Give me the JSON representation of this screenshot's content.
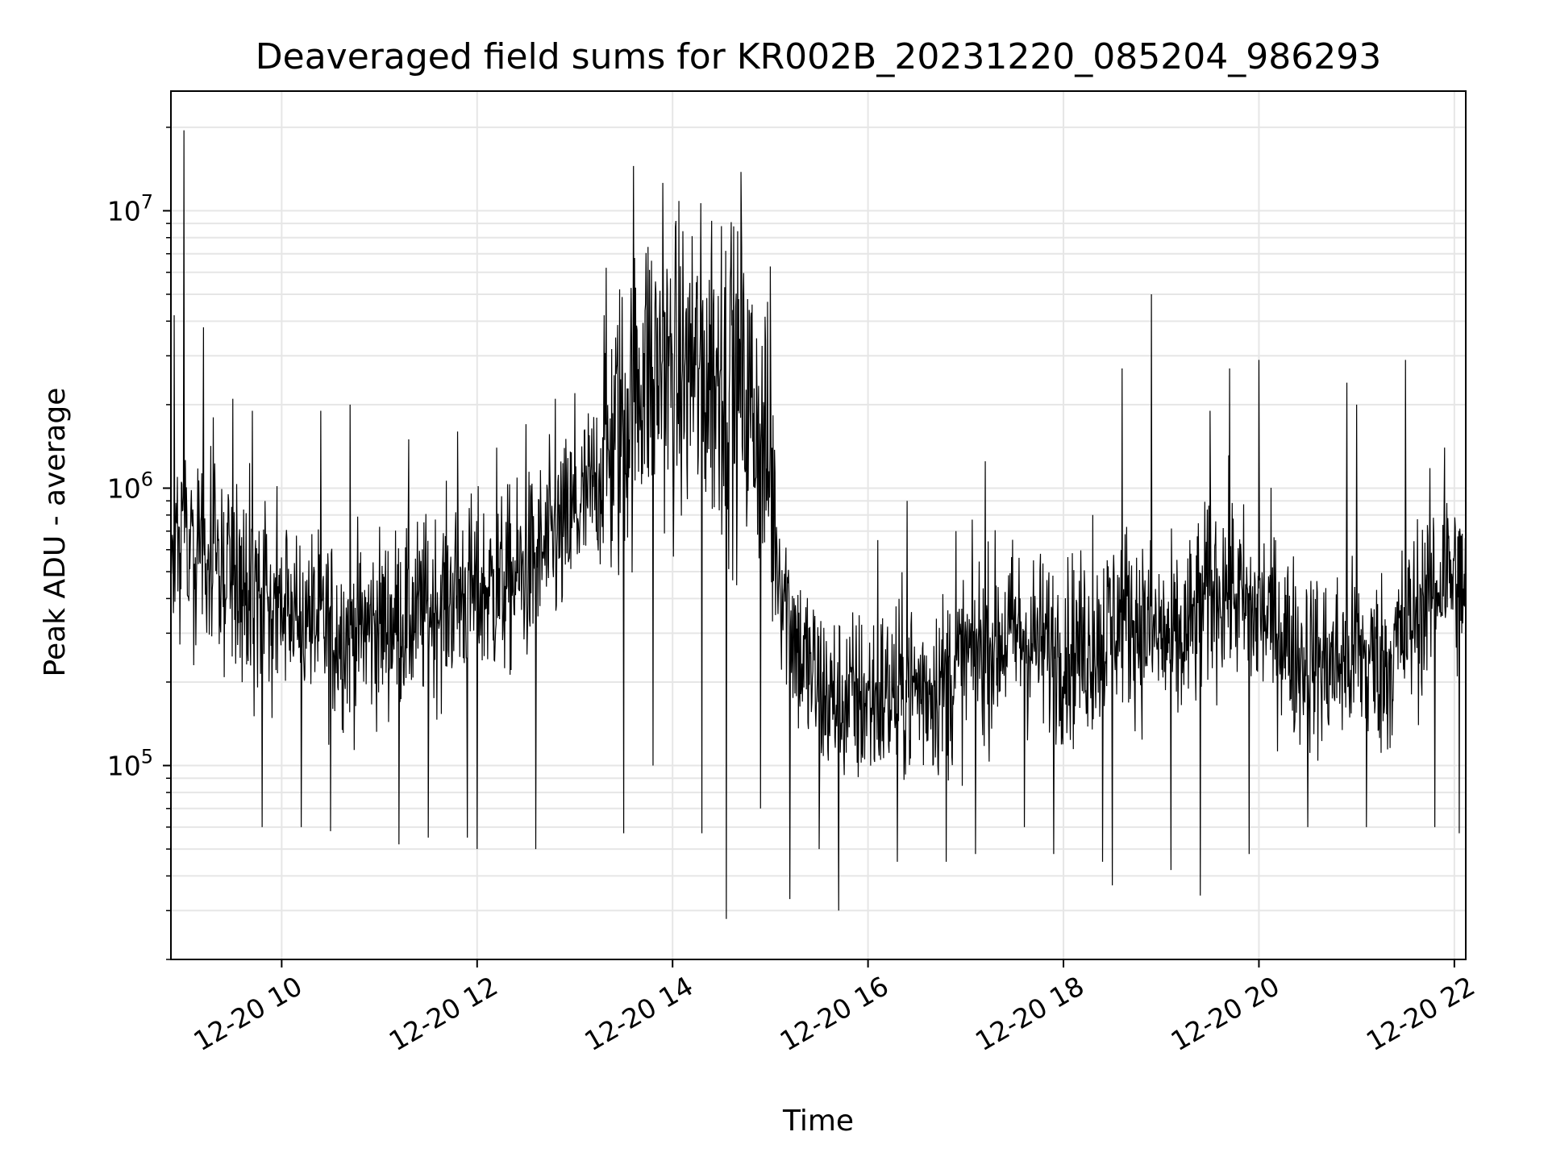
{
  "chart_data": {
    "type": "line",
    "title": "Deaveraged field sums for KR002B_20231220_085204_986293",
    "xlabel": "Time",
    "ylabel": "Peak ADU - average",
    "yscale": "log",
    "grid": true,
    "line_color": "#000000",
    "grid_color": "#e6e6e6",
    "xlim": [
      "12-20 08:52",
      "12-20 22:07"
    ],
    "ylim": [
      20000,
      27000000
    ],
    "x_ticks": [
      {
        "hour": 10,
        "label": "12-20 10"
      },
      {
        "hour": 12,
        "label": "12-20 12"
      },
      {
        "hour": 14,
        "label": "12-20 14"
      },
      {
        "hour": 16,
        "label": "12-20 16"
      },
      {
        "hour": 18,
        "label": "12-20 18"
      },
      {
        "hour": 20,
        "label": "12-20 20"
      },
      {
        "hour": 22,
        "label": "12-20 22"
      }
    ],
    "y_ticks": [
      {
        "value": 100000,
        "base": "10",
        "exp": "5"
      },
      {
        "value": 1000000,
        "base": "10",
        "exp": "6"
      },
      {
        "value": 10000000,
        "base": "10",
        "exp": "7"
      }
    ],
    "series": [
      {
        "x_unit": "hour of 2023-12-20",
        "baseline": [
          [
            8.88,
            700000
          ],
          [
            9.2,
            550000
          ],
          [
            9.5,
            450000
          ],
          [
            9.8,
            400000
          ],
          [
            10.0,
            350000
          ],
          [
            10.3,
            330000
          ],
          [
            10.6,
            300000
          ],
          [
            11.0,
            320000
          ],
          [
            11.4,
            350000
          ],
          [
            11.8,
            420000
          ],
          [
            12.2,
            430000
          ],
          [
            12.5,
            500000
          ],
          [
            12.9,
            700000
          ],
          [
            13.2,
            1000000
          ],
          [
            13.5,
            1800000
          ],
          [
            13.7,
            2800000
          ],
          [
            14.0,
            2500000
          ],
          [
            14.3,
            2600000
          ],
          [
            14.6,
            2300000
          ],
          [
            14.9,
            1800000
          ],
          [
            15.1,
            500000
          ],
          [
            15.3,
            250000
          ],
          [
            15.6,
            170000
          ],
          [
            15.9,
            170000
          ],
          [
            16.2,
            180000
          ],
          [
            16.5,
            190000
          ],
          [
            16.8,
            200000
          ],
          [
            17.1,
            260000
          ],
          [
            17.5,
            300000
          ],
          [
            17.9,
            260000
          ],
          [
            18.3,
            270000
          ],
          [
            18.6,
            360000
          ],
          [
            18.9,
            300000
          ],
          [
            19.2,
            270000
          ],
          [
            19.5,
            420000
          ],
          [
            19.7,
            450000
          ],
          [
            19.9,
            350000
          ],
          [
            20.1,
            350000
          ],
          [
            20.4,
            250000
          ],
          [
            20.7,
            230000
          ],
          [
            21.0,
            250000
          ],
          [
            21.3,
            230000
          ],
          [
            21.6,
            350000
          ],
          [
            21.9,
            500000
          ],
          [
            22.12,
            450000
          ]
        ],
        "spikes": [
          [
            8.9,
            4200000
          ],
          [
            9.0,
            19500000
          ],
          [
            9.1,
            2900000
          ],
          [
            9.2,
            3800000
          ],
          [
            9.3,
            1800000
          ],
          [
            9.5,
            2100000
          ],
          [
            9.7,
            1900000
          ],
          [
            10.2,
            1500000
          ],
          [
            10.4,
            1900000
          ],
          [
            10.7,
            2000000
          ],
          [
            11.3,
            1500000
          ],
          [
            11.8,
            1600000
          ],
          [
            12.2,
            1400000
          ],
          [
            12.5,
            1700000
          ],
          [
            12.8,
            2100000
          ],
          [
            13.0,
            2200000
          ],
          [
            13.3,
            4200000
          ],
          [
            13.6,
            14500000
          ],
          [
            13.8,
            12800000
          ],
          [
            13.9,
            12600000
          ],
          [
            14.2,
            8100000
          ],
          [
            14.4,
            9200000
          ],
          [
            14.5,
            8800000
          ],
          [
            14.6,
            9100000
          ],
          [
            14.7,
            13800000
          ],
          [
            14.9,
            8300000
          ],
          [
            15.0,
            6300000
          ],
          [
            15.7,
            800000
          ],
          [
            16.1,
            650000
          ],
          [
            16.4,
            900000
          ],
          [
            16.9,
            700000
          ],
          [
            17.2,
            1250000
          ],
          [
            17.6,
            900000
          ],
          [
            17.9,
            1050000
          ],
          [
            18.3,
            800000
          ],
          [
            18.6,
            2700000
          ],
          [
            18.9,
            5000000
          ],
          [
            19.1,
            1700000
          ],
          [
            19.5,
            1900000
          ],
          [
            19.7,
            2700000
          ],
          [
            20.0,
            2900000
          ],
          [
            20.5,
            1500000
          ],
          [
            20.9,
            2400000
          ],
          [
            21.0,
            2000000
          ],
          [
            21.5,
            2900000
          ],
          [
            21.9,
            1400000
          ],
          [
            22.05,
            1200000
          ]
        ],
        "dips": [
          [
            9.1,
            230000
          ],
          [
            9.8,
            60000
          ],
          [
            10.2,
            60000
          ],
          [
            10.5,
            58000
          ],
          [
            11.2,
            52000
          ],
          [
            11.5,
            55000
          ],
          [
            11.9,
            55000
          ],
          [
            12.0,
            50000
          ],
          [
            12.6,
            50000
          ],
          [
            13.5,
            57000
          ],
          [
            13.8,
            100000
          ],
          [
            14.3,
            57000
          ],
          [
            14.55,
            28000
          ],
          [
            14.9,
            70000
          ],
          [
            15.2,
            33000
          ],
          [
            15.5,
            50000
          ],
          [
            15.7,
            30000
          ],
          [
            16.3,
            45000
          ],
          [
            16.8,
            45000
          ],
          [
            17.1,
            48000
          ],
          [
            17.6,
            60000
          ],
          [
            17.9,
            48000
          ],
          [
            18.4,
            45000
          ],
          [
            18.5,
            37000
          ],
          [
            19.1,
            42000
          ],
          [
            19.4,
            34000
          ],
          [
            19.9,
            48000
          ],
          [
            20.5,
            60000
          ],
          [
            21.1,
            60000
          ],
          [
            21.8,
            60000
          ],
          [
            22.05,
            57000
          ]
        ]
      }
    ]
  }
}
